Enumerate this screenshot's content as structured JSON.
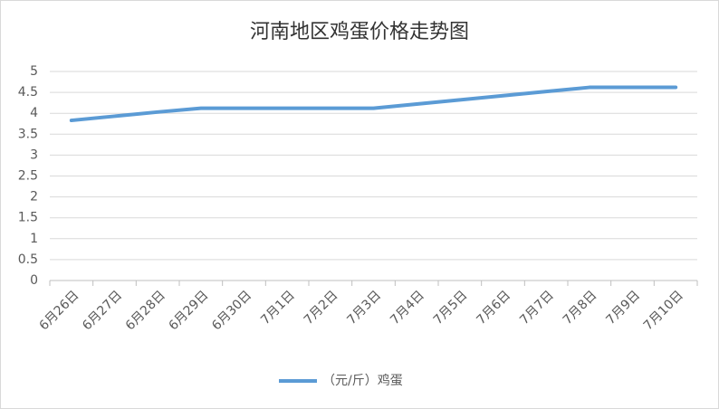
{
  "chart_data": {
    "type": "line",
    "title": "河南地区鸡蛋价格走势图",
    "categories": [
      "6月26日",
      "6月27日",
      "6月28日",
      "6月29日",
      "6月30日",
      "7月1日",
      "7月2日",
      "7月3日",
      "7月4日",
      "7月5日",
      "7月6日",
      "7月7日",
      "7月8日",
      "7月9日",
      "7月10日"
    ],
    "series": [
      {
        "name": "（元/斤）鸡蛋",
        "color": "#5b9bd5",
        "values": [
          3.83,
          3.93,
          4.03,
          4.12,
          4.12,
          4.12,
          4.12,
          4.12,
          4.22,
          4.32,
          4.42,
          4.52,
          4.62,
          4.62,
          4.62
        ]
      }
    ],
    "ylim": [
      0,
      5
    ],
    "yticks": [
      0,
      0.5,
      1,
      1.5,
      2,
      2.5,
      3,
      3.5,
      4,
      4.5,
      5
    ],
    "grid": true,
    "legend": "bottom"
  }
}
